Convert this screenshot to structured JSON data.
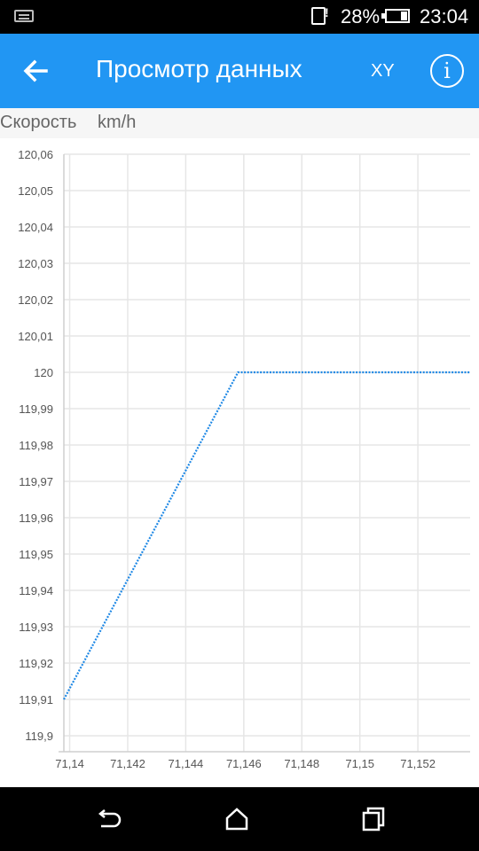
{
  "status_bar": {
    "battery": "28%",
    "battery_level": 0.28,
    "time": "23:04"
  },
  "app_bar": {
    "title": "Просмотр данных",
    "mode_button": "XY",
    "back_icon": "arrow-left-icon",
    "info_icon": "info-icon"
  },
  "series_header": {
    "name": "Скорость",
    "unit": "km/h"
  },
  "chart_data": {
    "type": "line",
    "grid": true,
    "xlim": [
      71.1398,
      71.1538
    ],
    "ylim": [
      119.9,
      120.06
    ],
    "x_ticks": [
      "71,14",
      "71,142",
      "71,144",
      "71,146",
      "71,148",
      "71,15",
      "71,152"
    ],
    "x_tick_values": [
      71.14,
      71.142,
      71.144,
      71.146,
      71.148,
      71.15,
      71.152
    ],
    "y_ticks": [
      "120,06",
      "120,05",
      "120,04",
      "120,03",
      "120,02",
      "120,01",
      "120",
      "119,99",
      "119,98",
      "119,97",
      "119,96",
      "119,95",
      "119,94",
      "119,93",
      "119,92",
      "119,91",
      "119,9"
    ],
    "y_tick_values": [
      120.06,
      120.05,
      120.04,
      120.03,
      120.02,
      120.01,
      120.0,
      119.99,
      119.98,
      119.97,
      119.96,
      119.95,
      119.94,
      119.93,
      119.92,
      119.91,
      119.9
    ],
    "series": [
      {
        "color": "#1e88e5",
        "x": [
          71.1398,
          71.1458,
          71.1538
        ],
        "y": [
          119.91,
          120.0,
          120.0
        ]
      }
    ]
  },
  "nav_bar": {
    "back_icon": "nav-back-icon",
    "home_icon": "nav-home-icon",
    "recents_icon": "nav-recents-icon"
  }
}
